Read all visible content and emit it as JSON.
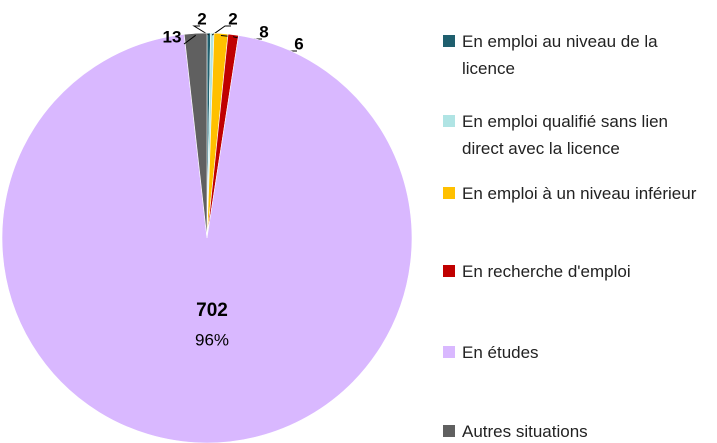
{
  "chart_data": {
    "type": "pie",
    "categories": [
      "En emploi au niveau de la licence",
      "En emploi qualifié sans lien direct avec la licence",
      "En emploi à un niveau inférieur",
      "En recherche d'emploi",
      "En études",
      "Autres situations"
    ],
    "values": [
      2,
      2,
      8,
      6,
      702,
      13
    ],
    "percent_labels": [
      null,
      null,
      null,
      null,
      "96%",
      null
    ],
    "colors": [
      "#1f5f6e",
      "#b0e4e4",
      "#ffc000",
      "#c00000",
      "#d9b8ff",
      "#606060"
    ],
    "legend": "right"
  }
}
